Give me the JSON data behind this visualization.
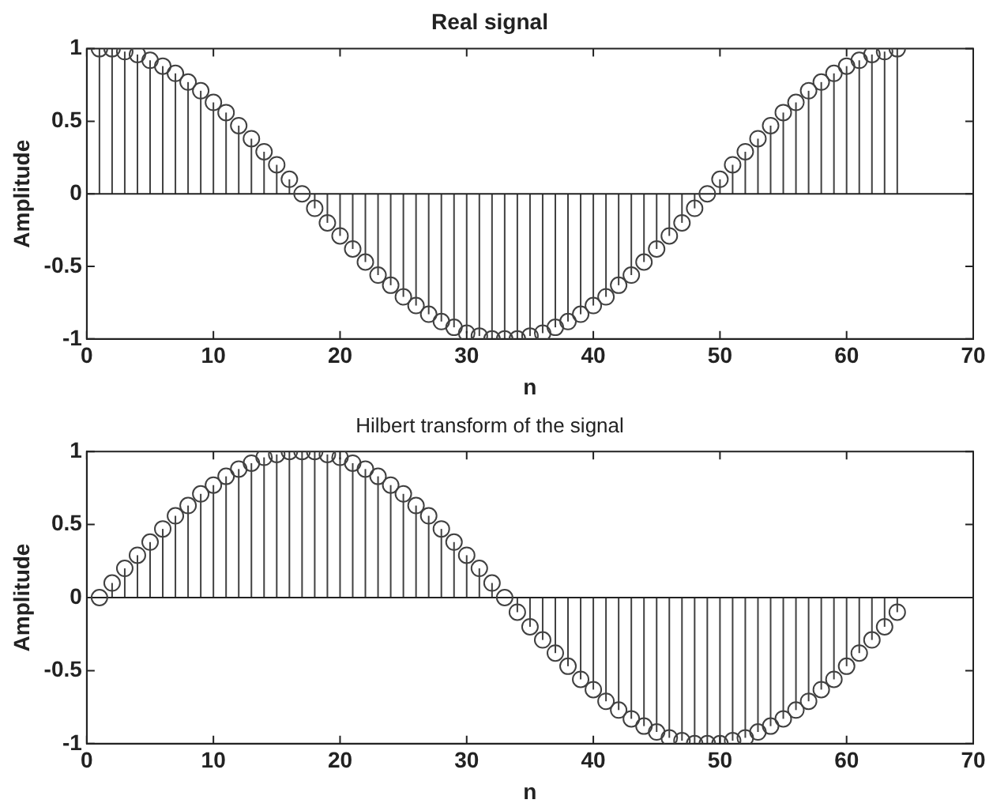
{
  "chart_data": [
    {
      "type": "lollipop",
      "title": "Real signal",
      "xlabel": "n",
      "ylabel": "Amplitude",
      "marker": "circle",
      "grid": false,
      "legend": false,
      "ref_lines": [
        {
          "axis": "y",
          "value": 0,
          "color": "#222222"
        }
      ],
      "xlim": [
        0,
        70
      ],
      "xticks": [
        0,
        10,
        20,
        30,
        40,
        50,
        60,
        70
      ],
      "ylim": [
        -1,
        1
      ],
      "yticks": [
        -1,
        -0.5,
        0,
        0.5,
        1
      ],
      "x": [
        1,
        2,
        3,
        4,
        5,
        6,
        7,
        8,
        9,
        10,
        11,
        12,
        13,
        14,
        15,
        16,
        17,
        18,
        19,
        20,
        21,
        22,
        23,
        24,
        25,
        26,
        27,
        28,
        29,
        30,
        31,
        32,
        33,
        34,
        35,
        36,
        37,
        38,
        39,
        40,
        41,
        42,
        43,
        44,
        45,
        46,
        47,
        48,
        49,
        50,
        51,
        52,
        53,
        54,
        55,
        56,
        57,
        58,
        59,
        60,
        61,
        62,
        63,
        64
      ],
      "series": [
        {
          "color": "#404040",
          "values": [
            1,
            1,
            0.98,
            0.96,
            0.92,
            0.88,
            0.83,
            0.77,
            0.71,
            0.63,
            0.56,
            0.47,
            0.38,
            0.29,
            0.2,
            0.1,
            0,
            -0.1,
            -0.2,
            -0.29,
            -0.38,
            -0.47,
            -0.56,
            -0.63,
            -0.71,
            -0.77,
            -0.83,
            -0.88,
            -0.92,
            -0.96,
            -0.98,
            -1,
            -1,
            -1,
            -0.98,
            -0.96,
            -0.92,
            -0.88,
            -0.83,
            -0.77,
            -0.71,
            -0.63,
            -0.56,
            -0.47,
            -0.38,
            -0.29,
            -0.2,
            -0.1,
            0,
            0.1,
            0.2,
            0.29,
            0.38,
            0.47,
            0.56,
            0.63,
            0.71,
            0.77,
            0.83,
            0.88,
            0.92,
            0.96,
            0.98,
            1
          ]
        }
      ]
    },
    {
      "type": "lollipop",
      "title": "Hilbert transform of the signal",
      "xlabel": "n",
      "ylabel": "Amplitude",
      "marker": "circle",
      "grid": false,
      "legend": false,
      "ref_lines": [
        {
          "axis": "y",
          "value": 0,
          "color": "#222222"
        }
      ],
      "xlim": [
        0,
        70
      ],
      "xticks": [
        0,
        10,
        20,
        30,
        40,
        50,
        60,
        70
      ],
      "ylim": [
        -1,
        1
      ],
      "yticks": [
        -1,
        -0.5,
        0,
        0.5,
        1
      ],
      "x": [
        1,
        2,
        3,
        4,
        5,
        6,
        7,
        8,
        9,
        10,
        11,
        12,
        13,
        14,
        15,
        16,
        17,
        18,
        19,
        20,
        21,
        22,
        23,
        24,
        25,
        26,
        27,
        28,
        29,
        30,
        31,
        32,
        33,
        34,
        35,
        36,
        37,
        38,
        39,
        40,
        41,
        42,
        43,
        44,
        45,
        46,
        47,
        48,
        49,
        50,
        51,
        52,
        53,
        54,
        55,
        56,
        57,
        58,
        59,
        60,
        61,
        62,
        63,
        64
      ],
      "series": [
        {
          "color": "#404040",
          "values": [
            0,
            0.1,
            0.2,
            0.29,
            0.38,
            0.47,
            0.56,
            0.63,
            0.71,
            0.77,
            0.83,
            0.88,
            0.92,
            0.96,
            0.98,
            1,
            1,
            1,
            0.98,
            0.96,
            0.92,
            0.88,
            0.83,
            0.77,
            0.71,
            0.63,
            0.56,
            0.47,
            0.38,
            0.29,
            0.2,
            0.1,
            0,
            -0.1,
            -0.2,
            -0.29,
            -0.38,
            -0.47,
            -0.56,
            -0.63,
            -0.71,
            -0.77,
            -0.83,
            -0.88,
            -0.92,
            -0.96,
            -0.98,
            -1,
            -1,
            -1,
            -0.98,
            -0.96,
            -0.92,
            -0.88,
            -0.83,
            -0.77,
            -0.71,
            -0.63,
            -0.56,
            -0.47,
            -0.38,
            -0.29,
            -0.2,
            -0.1
          ]
        }
      ]
    }
  ]
}
